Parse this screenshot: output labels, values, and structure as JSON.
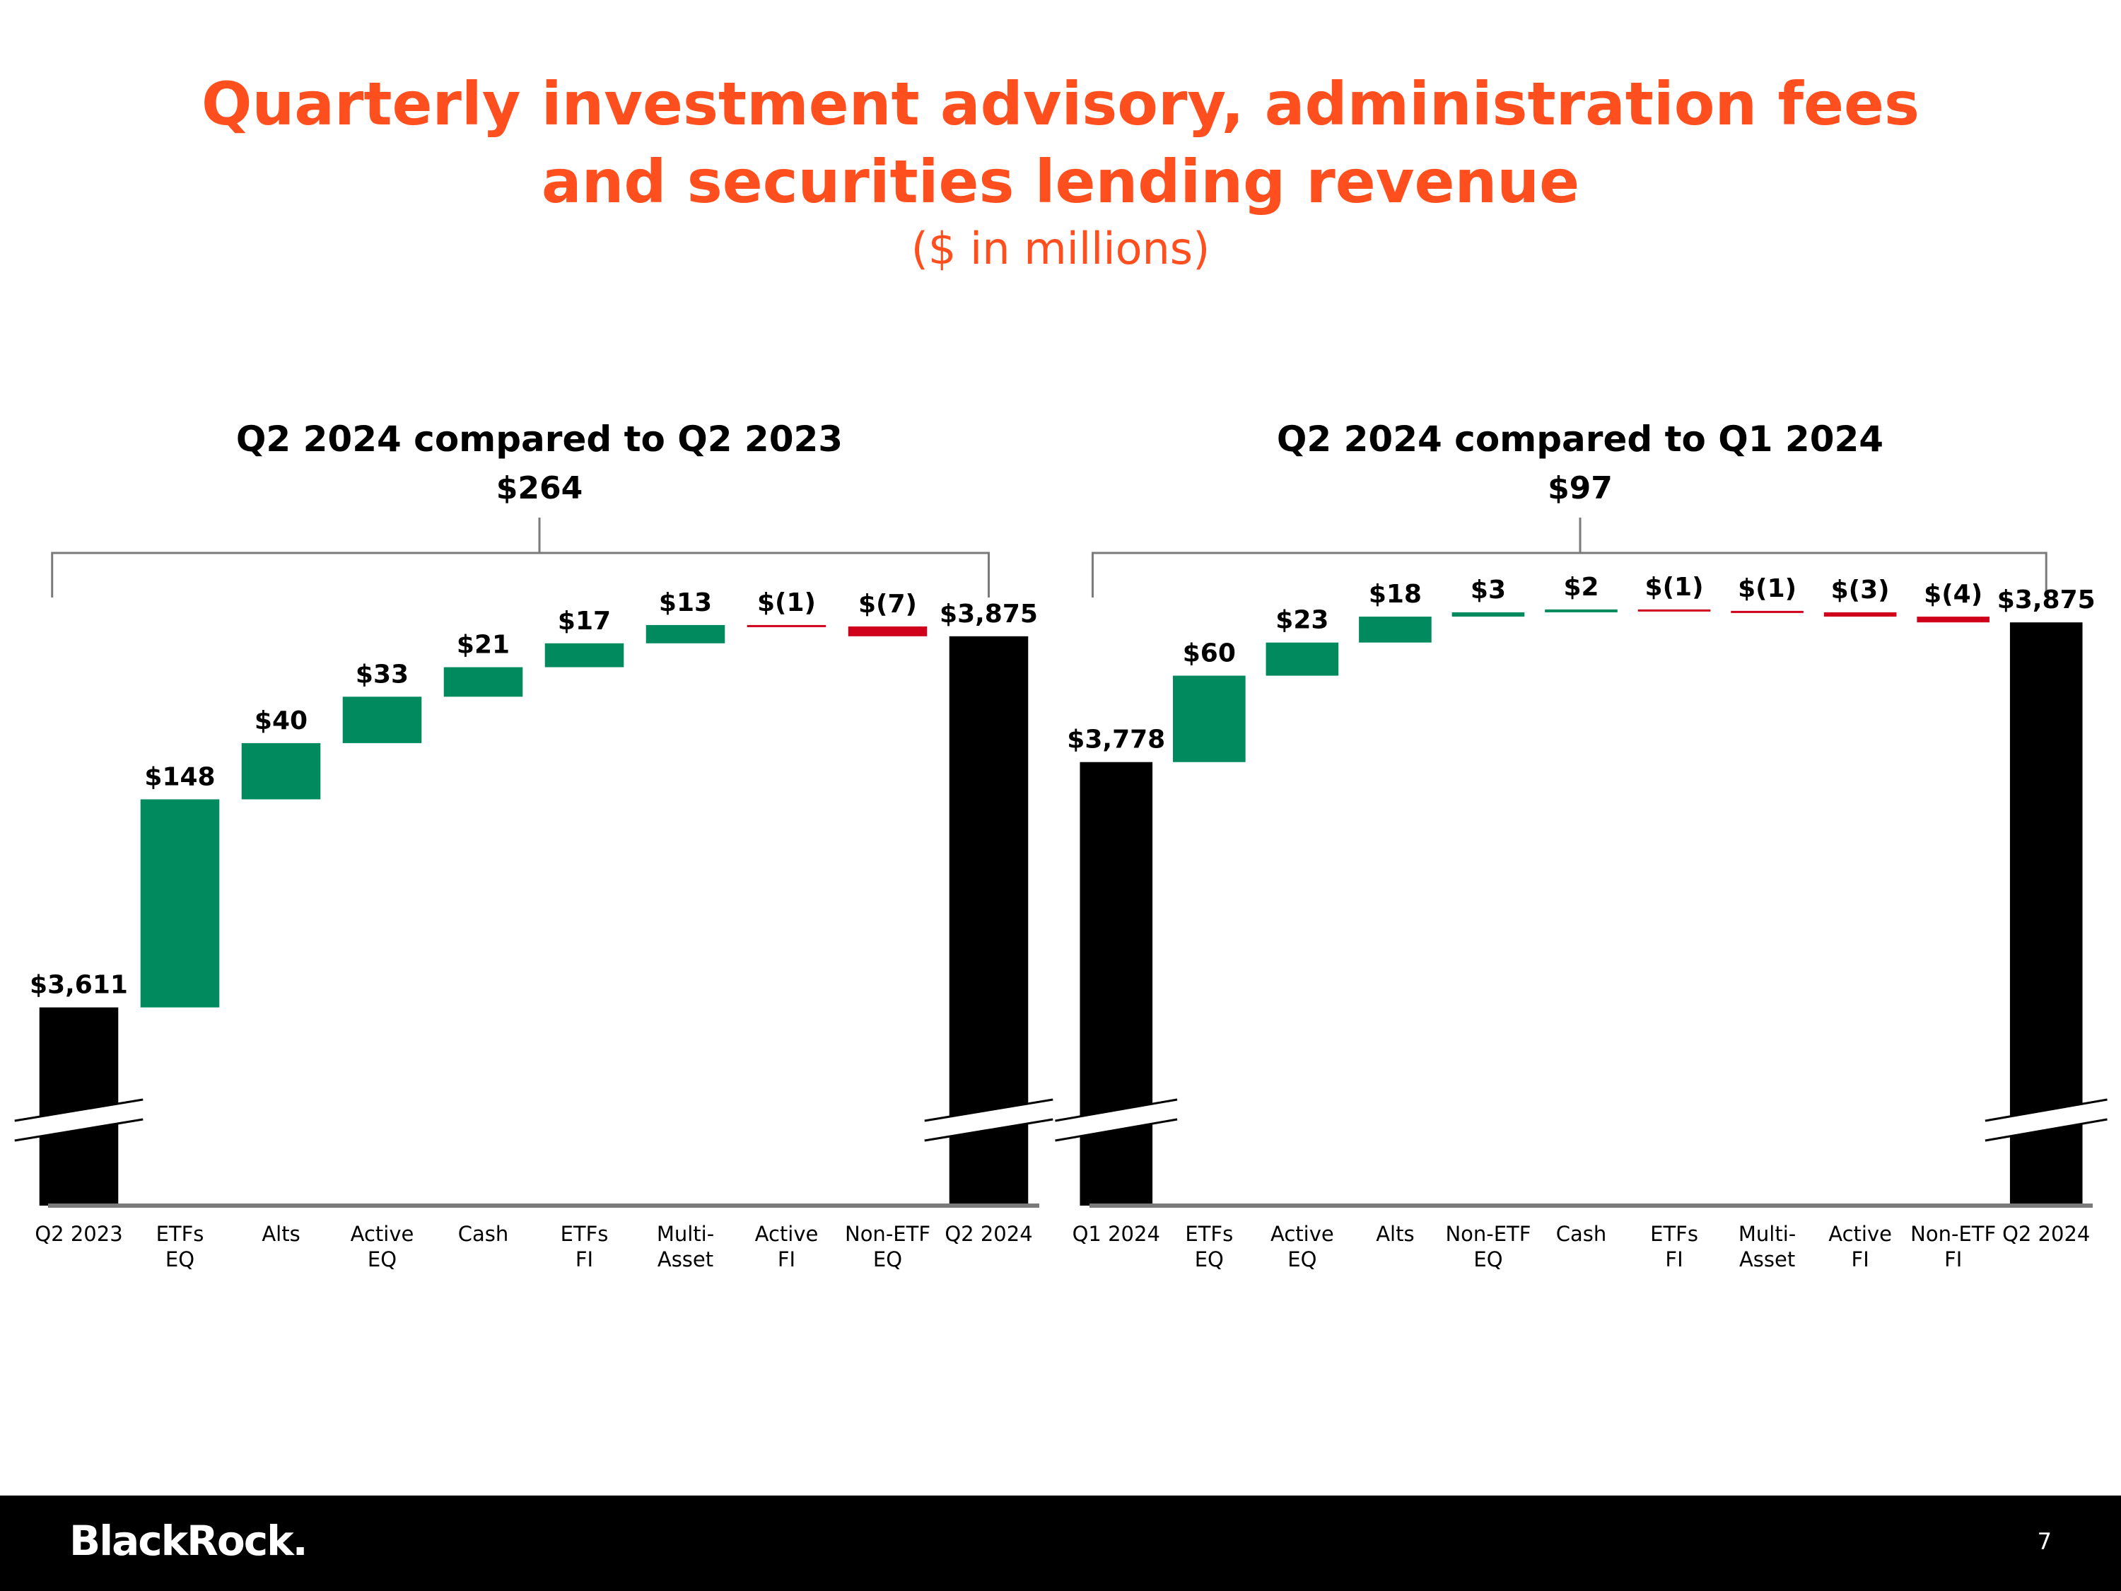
{
  "title_line1": "Quarterly investment advisory, administration fees",
  "title_line2": "and securities lending revenue",
  "subtitle": "($ in millions)",
  "colors": {
    "accent": "#ff4f1f",
    "increase": "#008a5e",
    "decrease": "#d0021b",
    "total": "#000000"
  },
  "chart_data": [
    {
      "type": "bar",
      "subtype": "waterfall",
      "title": "Q2 2024 compared to Q2 2023",
      "change_label": "$264",
      "categories": [
        "Q2 2023",
        "ETFs EQ",
        "Alts",
        "Active EQ",
        "Cash",
        "ETFs FI",
        "Multi-Asset",
        "Active FI",
        "Non-ETF EQ",
        "Q2 2024"
      ],
      "category_lines": [
        [
          "Q2 2023"
        ],
        [
          "ETFs",
          "EQ"
        ],
        [
          "Alts"
        ],
        [
          "Active",
          "EQ"
        ],
        [
          "Cash"
        ],
        [
          "ETFs",
          "FI"
        ],
        [
          "Multi-",
          "Asset"
        ],
        [
          "Active",
          "FI"
        ],
        [
          "Non-ETF",
          "EQ"
        ],
        [
          "Q2 2024"
        ]
      ],
      "values": [
        3611,
        148,
        40,
        33,
        21,
        17,
        13,
        -1,
        -7,
        3875
      ],
      "kinds": [
        "total",
        "delta",
        "delta",
        "delta",
        "delta",
        "delta",
        "delta",
        "delta",
        "delta",
        "total"
      ],
      "labels": [
        "$3,611",
        "$148",
        "$40",
        "$33",
        "$21",
        "$17",
        "$13",
        "$(1)",
        "$(7)",
        "$3,875"
      ],
      "ylim": [
        3470,
        3890
      ],
      "axis_break": true
    },
    {
      "type": "bar",
      "subtype": "waterfall",
      "title": "Q2 2024 compared to Q1 2024",
      "change_label": "$97",
      "categories": [
        "Q1 2024",
        "ETFs EQ",
        "Active EQ",
        "Alts",
        "Non-ETF EQ",
        "Cash",
        "ETFs FI",
        "Multi-Asset",
        "Active FI",
        "Non-ETF FI",
        "Q2 2024"
      ],
      "category_lines": [
        [
          "Q1 2024"
        ],
        [
          "ETFs",
          "EQ"
        ],
        [
          "Active",
          "EQ"
        ],
        [
          "Alts"
        ],
        [
          "Non-ETF",
          "EQ"
        ],
        [
          "Cash"
        ],
        [
          "ETFs",
          "FI"
        ],
        [
          "Multi-",
          "Asset"
        ],
        [
          "Active",
          "FI"
        ],
        [
          "Non-ETF",
          "FI"
        ],
        [
          "Q2 2024"
        ]
      ],
      "values": [
        3778,
        60,
        23,
        18,
        3,
        2,
        -1,
        -1,
        -3,
        -4,
        3875
      ],
      "kinds": [
        "total",
        "delta",
        "delta",
        "delta",
        "delta",
        "delta",
        "delta",
        "delta",
        "delta",
        "delta",
        "total"
      ],
      "labels": [
        "$3,778",
        "$60",
        "$23",
        "$18",
        "$3",
        "$2",
        "$(1)",
        "$(1)",
        "$(3)",
        "$(4)",
        "$3,875"
      ],
      "ylim": [
        3470,
        3880
      ],
      "axis_break": true
    }
  ],
  "footer": {
    "logo": "BlackRock.",
    "page_number": "7"
  }
}
